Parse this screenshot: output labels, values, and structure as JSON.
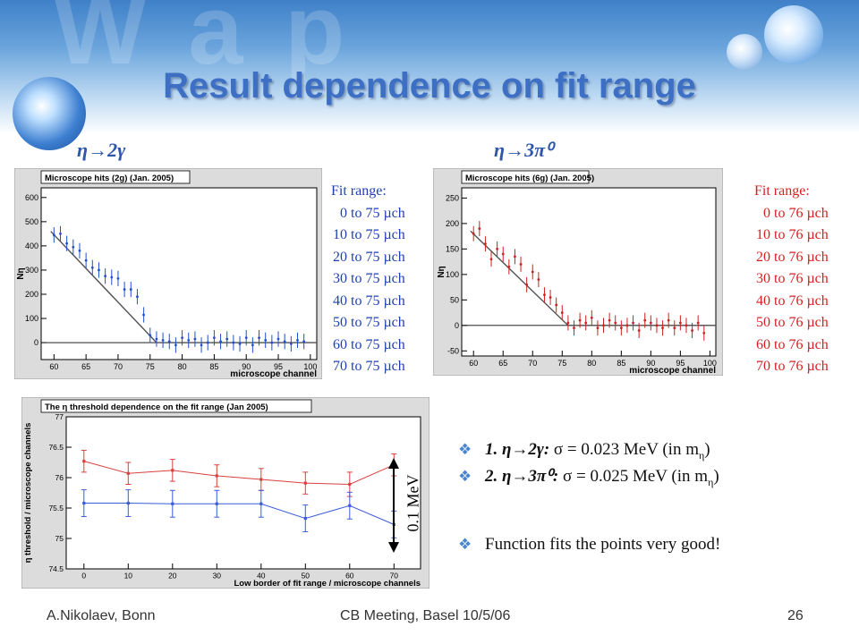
{
  "title": "Result dependence on fit range",
  "panel_labels": {
    "left": "η→2γ",
    "right": "η→3π⁰"
  },
  "fit_range_left": {
    "header": "Fit range:",
    "rows": [
      "0 to 75 µch",
      "10 to 75 µch",
      "20 to 75 µch",
      "30 to 75 µch",
      "40 to 75 µch",
      "50 to 75 µch",
      "60 to 75 µch",
      "70 to 75 µch"
    ],
    "color": "#1f3fb0"
  },
  "fit_range_right": {
    "header": "Fit range:",
    "rows": [
      "0 to 76 µch",
      "10 to 76 µch",
      "20 to 76 µch",
      "30 to 76 µch",
      "40 to 76 µch",
      "50 to 76 µch",
      "60 to 76 µch",
      "70 to 76 µch"
    ],
    "color": "#d42020"
  },
  "bullets": [
    {
      "prefix": "1. η→2γ:",
      "text": "σ = 0.023 MeV (in m",
      "sub": "η",
      "suffix": ")"
    },
    {
      "prefix": "2. η→3π⁰:",
      "text": "σ = 0.025 MeV (in m",
      "sub": "η",
      "suffix": ")"
    },
    {
      "prefix": "",
      "text": "Function fits the points very good!",
      "sub": "",
      "suffix": ""
    }
  ],
  "annotation": "0.1 MeV",
  "footer": {
    "left": "A.Nikolaev, Bonn",
    "center": "CB Meeting, Basel 10/5/06",
    "page": "26"
  },
  "chart_data": [
    {
      "type": "scatter",
      "title": "Microscope hits (2g) (Jan. 2005)",
      "xlabel": "microscope channel",
      "ylabel": "Nη",
      "xlim": [
        58,
        101
      ],
      "ylim": [
        -70,
        640
      ],
      "xticks": [
        60,
        65,
        70,
        75,
        80,
        85,
        90,
        95,
        100
      ],
      "yticks": [
        0,
        100,
        200,
        300,
        400,
        500,
        600
      ],
      "series": [
        {
          "color": "#2050d0",
          "x": [
            60,
            61,
            62,
            63,
            64,
            65,
            66,
            67,
            68,
            69,
            70,
            71,
            72,
            73,
            74,
            75,
            76,
            77,
            78,
            79,
            80,
            81,
            82,
            83,
            84,
            85,
            86,
            87,
            88,
            89,
            90,
            91,
            92,
            93,
            94,
            95,
            96,
            97,
            98,
            99
          ],
          "y": [
            445,
            450,
            410,
            395,
            380,
            340,
            310,
            300,
            275,
            270,
            265,
            220,
            220,
            190,
            115,
            30,
            15,
            10,
            5,
            -10,
            20,
            10,
            15,
            -10,
            0,
            20,
            5,
            15,
            0,
            -5,
            20,
            -10,
            20,
            10,
            0,
            15,
            5,
            -5,
            10,
            5
          ]
        }
      ],
      "fit_line": {
        "x": [
          59.5,
          76,
          101
        ],
        "y": [
          460,
          0,
          0
        ]
      }
    },
    {
      "type": "scatter",
      "title": "Microscope hits (6g) (Jan. 2005)",
      "xlabel": "microscope channel",
      "ylabel": "Nη",
      "xlim": [
        58,
        101
      ],
      "ylim": [
        -60,
        270
      ],
      "xticks": [
        60,
        65,
        70,
        75,
        80,
        85,
        90,
        95,
        100
      ],
      "yticks": [
        -50,
        0,
        50,
        100,
        150,
        200,
        250
      ],
      "series": [
        {
          "color": "#d02020",
          "x": [
            60,
            61,
            62,
            63,
            64,
            65,
            66,
            67,
            68,
            69,
            70,
            71,
            72,
            73,
            74,
            75,
            76,
            77,
            78,
            79,
            80,
            81,
            82,
            83,
            84,
            85,
            86,
            87,
            88,
            89,
            90,
            91,
            92,
            93,
            94,
            95,
            96,
            97,
            98,
            99
          ],
          "y": [
            180,
            190,
            160,
            130,
            150,
            140,
            115,
            135,
            120,
            80,
            105,
            90,
            60,
            55,
            40,
            25,
            5,
            -5,
            10,
            5,
            15,
            -5,
            0,
            10,
            5,
            -5,
            0,
            5,
            -10,
            10,
            5,
            0,
            -5,
            10,
            -5,
            5,
            0,
            -10,
            5,
            -15
          ]
        }
      ],
      "fit_line": {
        "x": [
          59.5,
          76,
          101
        ],
        "y": [
          185,
          0,
          0
        ]
      }
    },
    {
      "type": "line",
      "title": "The η threshold dependence on the fit range (Jan 2005)",
      "xlabel": "Low border of fit range / microscope channels",
      "ylabel": "η threshold / microscope channels",
      "xlim": [
        -4,
        76
      ],
      "ylim": [
        74.5,
        77
      ],
      "xticks": [
        0,
        10,
        20,
        30,
        40,
        50,
        60,
        70
      ],
      "yticks": [
        74.5,
        75,
        75.5,
        76,
        76.5,
        77
      ],
      "categories": [
        0,
        10,
        20,
        30,
        40,
        50,
        60,
        70
      ],
      "series": [
        {
          "color": "#d84040",
          "values": [
            76.27,
            76.07,
            76.12,
            76.03,
            75.97,
            75.91,
            75.89,
            76.21
          ],
          "errors": [
            0.18,
            0.18,
            0.18,
            0.18,
            0.18,
            0.18,
            0.2,
            0.18
          ]
        },
        {
          "color": "#3a5cd8",
          "values": [
            75.58,
            75.58,
            75.57,
            75.57,
            75.57,
            75.33,
            75.54,
            75.23
          ],
          "errors": [
            0.22,
            0.22,
            0.22,
            0.22,
            0.22,
            0.22,
            0.22,
            0.22
          ]
        }
      ]
    }
  ]
}
